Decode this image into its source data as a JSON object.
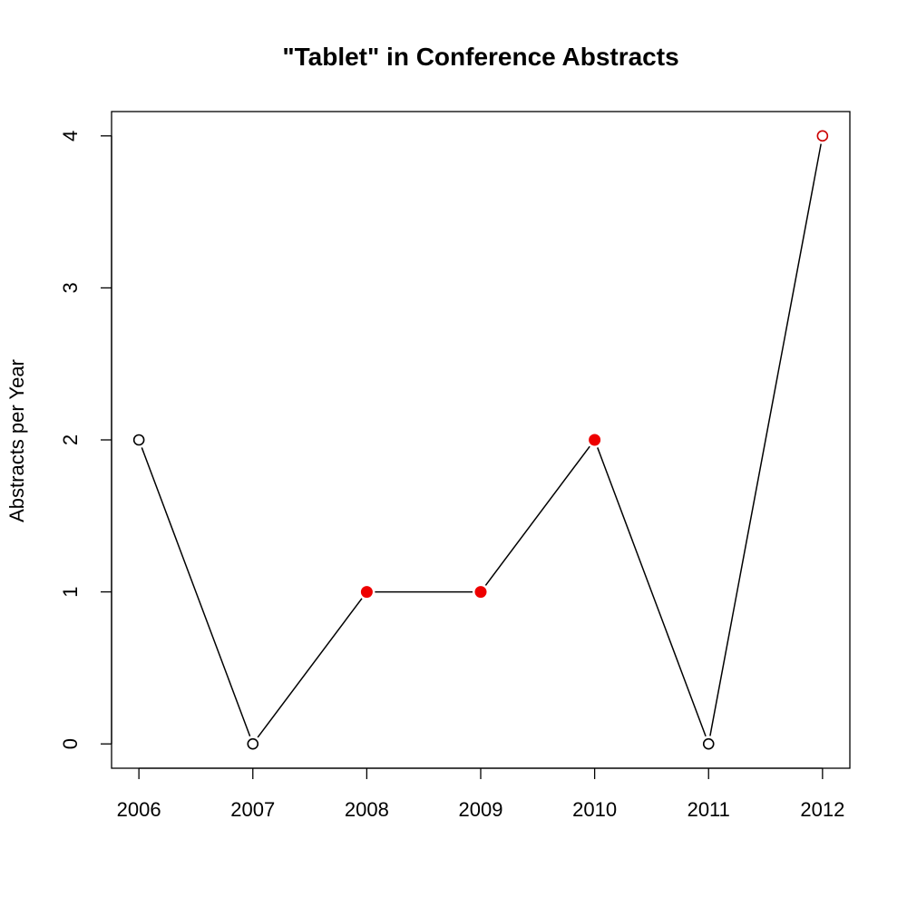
{
  "chart_data": {
    "type": "line",
    "title": "\"Tablet\" in Conference Abstracts",
    "xlabel": "",
    "ylabel": "Abstracts per Year",
    "x": [
      2006,
      2007,
      2008,
      2009,
      2010,
      2011,
      2012
    ],
    "x_tick_labels": [
      "2006",
      "2007",
      "2008",
      "2009",
      "2010",
      "2011",
      "2012"
    ],
    "y_tick_labels": [
      "0",
      "1",
      "2",
      "3",
      "4"
    ],
    "y_ticks": [
      0,
      1,
      2,
      3,
      4
    ],
    "xlim": [
      2005.76,
      2012.24
    ],
    "ylim": [
      -0.16,
      4.16
    ],
    "grid": false,
    "series": [
      {
        "values": [
          2,
          0,
          1,
          1,
          2,
          0,
          4
        ],
        "line_color": "#000000",
        "point_styles": [
          "open",
          "open",
          "filled",
          "filled",
          "filled",
          "open",
          "open"
        ],
        "point_colors": [
          "#000000",
          "#000000",
          "#ee0000",
          "#ee0000",
          "#ee0000",
          "#000000",
          "#cc0000"
        ]
      }
    ]
  }
}
